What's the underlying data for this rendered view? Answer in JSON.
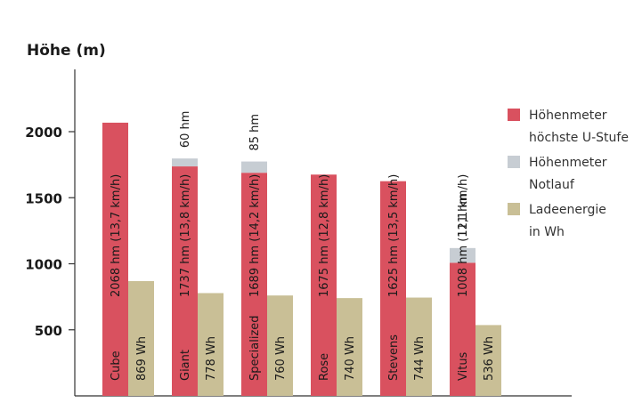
{
  "chart_data": {
    "type": "bar",
    "ylabel": "Höhe (m)",
    "yticks": [
      500,
      1000,
      1500,
      2000
    ],
    "ylim": [
      0,
      2450
    ],
    "grid": false,
    "legend_position": "right",
    "categories": [
      "Cube",
      "Giant",
      "Specialized",
      "Rose",
      "Stevens",
      "Vitus"
    ],
    "series": [
      {
        "name": "Höhenmeter höchste U-Stufe",
        "legend_lines": [
          "Höhenmeter",
          "höchste U-Stufe"
        ],
        "color": "#d9515f",
        "values": [
          2068,
          1737,
          1689,
          1675,
          1625,
          1008
        ],
        "labels": [
          "2068 hm (13,7 km/h)",
          "1737 hm (13,8 km/h)",
          "1689 hm (14,2 km/h)",
          "1675 hm (12,8 km/h)",
          "1625 hm (13,5 km/h)",
          "1008 hm (12,1 km/h)"
        ]
      },
      {
        "name": "Höhenmeter Notlauf",
        "legend_lines": [
          "Höhenmeter",
          "Notlauf"
        ],
        "color": "#c7cdd3",
        "stacked_on": "Höhenmeter höchste U-Stufe",
        "values": [
          0,
          60,
          85,
          0,
          0,
          111
        ],
        "labels": [
          "",
          "60 hm",
          "85 hm",
          "",
          "",
          "111 hm"
        ]
      },
      {
        "name": "Ladeenergie in Wh",
        "legend_lines": [
          "Ladeenergie",
          "in Wh"
        ],
        "color": "#c9bf96",
        "values": [
          869,
          778,
          760,
          740,
          744,
          536
        ],
        "labels": [
          "869 Wh",
          "778 Wh",
          "760 Wh",
          "740 Wh",
          "744 Wh",
          "536 Wh"
        ]
      }
    ]
  }
}
